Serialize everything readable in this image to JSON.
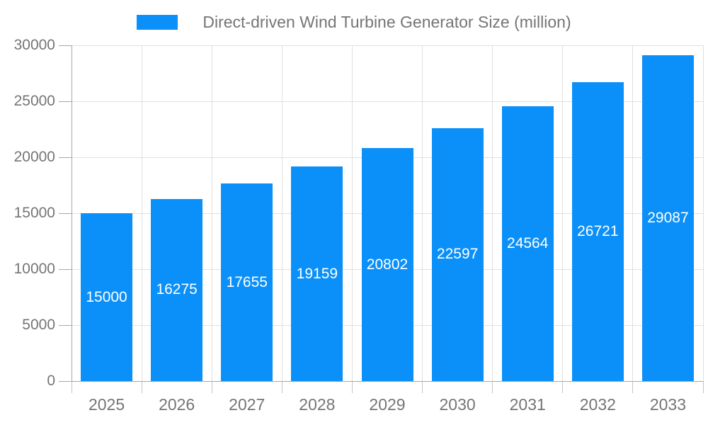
{
  "legend": {
    "label": "Direct-driven Wind Turbine Generator Size (million)"
  },
  "colors": {
    "bar": "#0b90f9",
    "grid": "#e0e0e0",
    "axis": "#a8a8a8",
    "x_tick": "#c4c4c4",
    "axis_text": "#757575",
    "bar_label": "#ffffff",
    "background": "#ffffff"
  },
  "chart_data": {
    "type": "bar",
    "title": "Direct-driven Wind Turbine Generator Size (million)",
    "series_name": "Direct-driven Wind Turbine Generator Size (million)",
    "categories": [
      "2025",
      "2026",
      "2027",
      "2028",
      "2029",
      "2030",
      "2031",
      "2032",
      "2033"
    ],
    "values": [
      15000,
      16275,
      17655,
      19159,
      20802,
      22597,
      24564,
      26721,
      29087
    ],
    "xlabel": "",
    "ylabel": "",
    "ylim": [
      0,
      30000
    ],
    "y_ticks": [
      0,
      5000,
      10000,
      15000,
      20000,
      25000,
      30000
    ],
    "grid": true,
    "legend_position": "top-center",
    "bar_label_position": "inside-center"
  }
}
